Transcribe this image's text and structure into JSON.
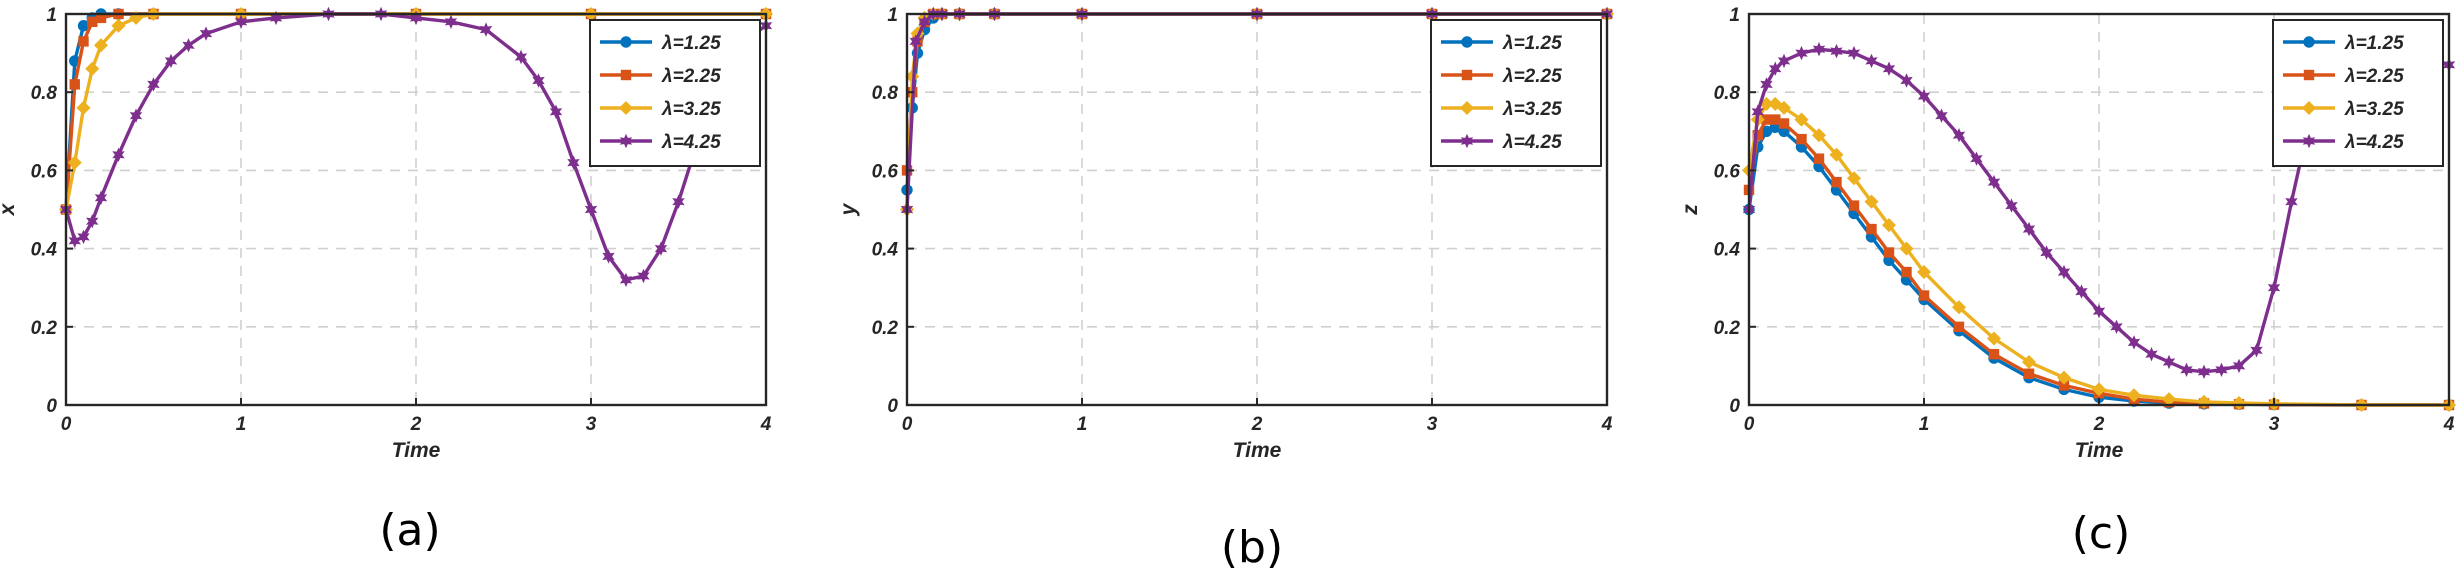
{
  "charts": [
    {
      "panel_caption": "(a)",
      "chart_data": {
        "type": "line",
        "xlabel": "Time",
        "ylabel": "x",
        "xlim": [
          0,
          4
        ],
        "ylim": [
          0,
          1
        ],
        "xticks": [
          "0",
          "1",
          "2",
          "3",
          "4"
        ],
        "yticks": [
          "0",
          "0.2",
          "0.4",
          "0.6",
          "0.8",
          "1"
        ],
        "grid": true,
        "legend_position": "top-right",
        "series": [
          {
            "name": "λ=1.25",
            "color": "#0072BD",
            "marker": "circle",
            "x": [
              0,
              0.05,
              0.1,
              0.15,
              0.2,
              0.3,
              0.5,
              1,
              2,
              3,
              4
            ],
            "y": [
              0.5,
              0.88,
              0.97,
              0.99,
              1.0,
              1.0,
              1.0,
              1.0,
              1.0,
              1.0,
              1.0
            ]
          },
          {
            "name": "λ=2.25",
            "color": "#D95319",
            "marker": "square",
            "x": [
              0,
              0.05,
              0.1,
              0.15,
              0.2,
              0.3,
              0.5,
              1,
              2,
              3,
              4
            ],
            "y": [
              0.5,
              0.82,
              0.93,
              0.98,
              0.99,
              1.0,
              1.0,
              1.0,
              1.0,
              1.0,
              1.0
            ]
          },
          {
            "name": "λ=3.25",
            "color": "#EDB120",
            "marker": "diamond",
            "x": [
              0,
              0.05,
              0.1,
              0.15,
              0.2,
              0.3,
              0.4,
              0.5,
              1,
              2,
              3,
              4
            ],
            "y": [
              0.5,
              0.62,
              0.76,
              0.86,
              0.92,
              0.97,
              0.99,
              1.0,
              1.0,
              1.0,
              1.0,
              1.0
            ]
          },
          {
            "name": "λ=4.25",
            "color": "#7E2F8E",
            "marker": "hexagram",
            "x": [
              0,
              0.05,
              0.1,
              0.15,
              0.2,
              0.3,
              0.4,
              0.5,
              0.6,
              0.7,
              0.8,
              1.0,
              1.2,
              1.5,
              1.8,
              2.0,
              2.2,
              2.4,
              2.6,
              2.7,
              2.8,
              2.9,
              3.0,
              3.1,
              3.2,
              3.3,
              3.4,
              3.5,
              3.6,
              3.7,
              3.8,
              3.9,
              4.0
            ],
            "y": [
              0.5,
              0.42,
              0.43,
              0.47,
              0.53,
              0.64,
              0.74,
              0.82,
              0.88,
              0.92,
              0.95,
              0.98,
              0.99,
              1.0,
              1.0,
              0.99,
              0.98,
              0.96,
              0.89,
              0.83,
              0.75,
              0.62,
              0.5,
              0.38,
              0.32,
              0.33,
              0.4,
              0.52,
              0.66,
              0.79,
              0.88,
              0.94,
              0.97
            ]
          }
        ]
      }
    },
    {
      "panel_caption": "(b)",
      "chart_data": {
        "type": "line",
        "xlabel": "Time",
        "ylabel": "y",
        "xlim": [
          0,
          4
        ],
        "ylim": [
          0,
          1
        ],
        "xticks": [
          "0",
          "1",
          "2",
          "3",
          "4"
        ],
        "yticks": [
          "0",
          "0.2",
          "0.4",
          "0.6",
          "0.8",
          "1"
        ],
        "grid": true,
        "legend_position": "top-right",
        "series": [
          {
            "name": "λ=1.25",
            "color": "#0072BD",
            "marker": "circle",
            "x": [
              0,
              0.03,
              0.06,
              0.1,
              0.15,
              0.2,
              0.3,
              0.5,
              1,
              2,
              3,
              4
            ],
            "y": [
              0.55,
              0.76,
              0.9,
              0.96,
              0.99,
              1.0,
              1.0,
              1.0,
              1.0,
              1.0,
              1.0,
              1.0
            ]
          },
          {
            "name": "λ=2.25",
            "color": "#D95319",
            "marker": "square",
            "x": [
              0,
              0.03,
              0.06,
              0.1,
              0.15,
              0.2,
              0.3,
              0.5,
              1,
              2,
              3,
              4
            ],
            "y": [
              0.6,
              0.8,
              0.93,
              0.98,
              1.0,
              1.0,
              1.0,
              1.0,
              1.0,
              1.0,
              1.0,
              1.0
            ]
          },
          {
            "name": "λ=3.25",
            "color": "#EDB120",
            "marker": "diamond",
            "x": [
              0,
              0.03,
              0.06,
              0.1,
              0.15,
              0.2,
              0.3,
              0.5,
              1,
              2,
              3,
              4
            ],
            "y": [
              0.5,
              0.84,
              0.95,
              0.99,
              1.0,
              1.0,
              1.0,
              1.0,
              1.0,
              1.0,
              1.0,
              1.0
            ]
          },
          {
            "name": "λ=4.25",
            "color": "#7E2F8E",
            "marker": "hexagram",
            "x": [
              0,
              0.05,
              0.1,
              0.15,
              0.2,
              0.3,
              0.5,
              1,
              2,
              3,
              4
            ],
            "y": [
              0.5,
              0.93,
              0.98,
              1.0,
              1.0,
              1.0,
              1.0,
              1.0,
              1.0,
              1.0,
              1.0
            ]
          }
        ]
      }
    },
    {
      "panel_caption": "(c)",
      "chart_data": {
        "type": "line",
        "xlabel": "Time",
        "ylabel": "z",
        "xlim": [
          0,
          4
        ],
        "ylim": [
          0,
          1
        ],
        "xticks": [
          "0",
          "1",
          "2",
          "3",
          "4"
        ],
        "yticks": [
          "0",
          "0.2",
          "0.4",
          "0.6",
          "0.8",
          "1"
        ],
        "grid": true,
        "legend_position": "top-right",
        "series": [
          {
            "name": "λ=1.25",
            "color": "#0072BD",
            "marker": "circle",
            "x": [
              0,
              0.05,
              0.1,
              0.15,
              0.2,
              0.3,
              0.4,
              0.5,
              0.6,
              0.7,
              0.8,
              0.9,
              1.0,
              1.2,
              1.4,
              1.6,
              1.8,
              2.0,
              2.2,
              2.4,
              2.6,
              2.8,
              3.0,
              3.5,
              4.0
            ],
            "y": [
              0.5,
              0.66,
              0.7,
              0.71,
              0.7,
              0.66,
              0.61,
              0.55,
              0.49,
              0.43,
              0.37,
              0.32,
              0.27,
              0.19,
              0.12,
              0.07,
              0.04,
              0.02,
              0.01,
              0.005,
              0.003,
              0.002,
              0.001,
              0.0,
              0.0
            ]
          },
          {
            "name": "λ=2.25",
            "color": "#D95319",
            "marker": "square",
            "x": [
              0,
              0.05,
              0.1,
              0.15,
              0.2,
              0.3,
              0.4,
              0.5,
              0.6,
              0.7,
              0.8,
              0.9,
              1.0,
              1.2,
              1.4,
              1.6,
              1.8,
              2.0,
              2.2,
              2.4,
              2.6,
              2.8,
              3.0,
              3.5,
              4.0
            ],
            "y": [
              0.55,
              0.69,
              0.73,
              0.73,
              0.72,
              0.68,
              0.63,
              0.57,
              0.51,
              0.45,
              0.39,
              0.34,
              0.28,
              0.2,
              0.13,
              0.08,
              0.05,
              0.03,
              0.015,
              0.007,
              0.004,
              0.002,
              0.001,
              0.0,
              0.0
            ]
          },
          {
            "name": "λ=3.25",
            "color": "#EDB120",
            "marker": "diamond",
            "x": [
              0,
              0.05,
              0.1,
              0.15,
              0.2,
              0.3,
              0.4,
              0.5,
              0.6,
              0.7,
              0.8,
              0.9,
              1.0,
              1.2,
              1.4,
              1.6,
              1.8,
              2.0,
              2.2,
              2.4,
              2.6,
              2.8,
              3.0,
              3.5,
              4.0
            ],
            "y": [
              0.6,
              0.73,
              0.77,
              0.77,
              0.76,
              0.73,
              0.69,
              0.64,
              0.58,
              0.52,
              0.46,
              0.4,
              0.34,
              0.25,
              0.17,
              0.11,
              0.07,
              0.04,
              0.025,
              0.015,
              0.008,
              0.005,
              0.003,
              0.0,
              0.0
            ]
          },
          {
            "name": "λ=4.25",
            "color": "#7E2F8E",
            "marker": "hexagram",
            "x": [
              0,
              0.05,
              0.1,
              0.15,
              0.2,
              0.3,
              0.4,
              0.5,
              0.6,
              0.7,
              0.8,
              0.9,
              1.0,
              1.1,
              1.2,
              1.3,
              1.4,
              1.5,
              1.6,
              1.7,
              1.8,
              1.9,
              2.0,
              2.1,
              2.2,
              2.3,
              2.4,
              2.5,
              2.6,
              2.7,
              2.8,
              2.9,
              3.0,
              3.1,
              3.2,
              3.3,
              3.5,
              3.7,
              3.9,
              4.0
            ],
            "y": [
              0.5,
              0.75,
              0.82,
              0.86,
              0.88,
              0.9,
              0.91,
              0.905,
              0.9,
              0.88,
              0.86,
              0.83,
              0.79,
              0.74,
              0.69,
              0.63,
              0.57,
              0.51,
              0.45,
              0.39,
              0.34,
              0.29,
              0.24,
              0.2,
              0.16,
              0.13,
              0.11,
              0.09,
              0.085,
              0.09,
              0.1,
              0.14,
              0.3,
              0.52,
              0.72,
              0.85,
              0.92,
              0.9,
              0.88,
              0.87
            ]
          }
        ]
      }
    }
  ]
}
